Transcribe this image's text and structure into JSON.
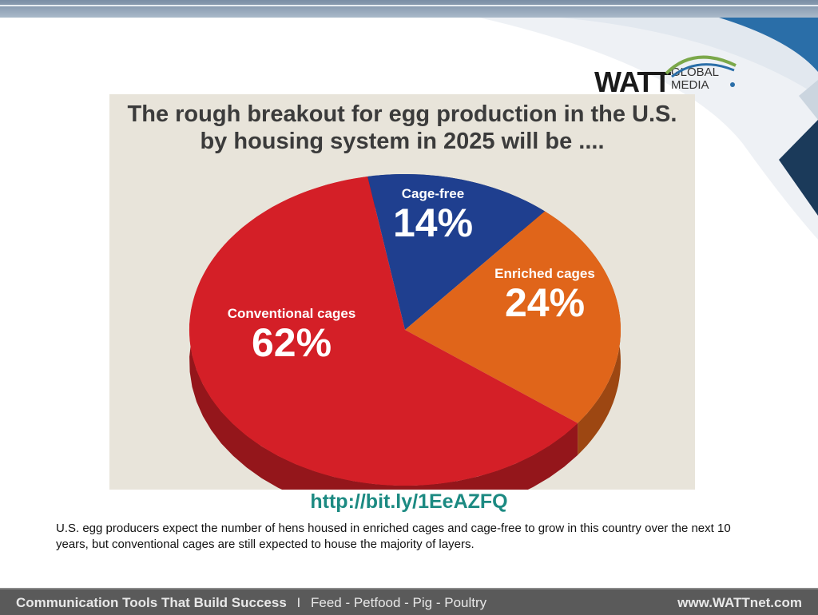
{
  "logo": {
    "brand": "WATT",
    "line1": "GLOBAL",
    "line2": "MEDIA"
  },
  "chart_data": {
    "type": "pie",
    "title_line1": "The rough breakout for egg production in the U.S.",
    "title_line2": "by housing system in 2025 will be ....",
    "slices": [
      {
        "label": "Cage-free",
        "value": 14,
        "value_label": "14%",
        "color": "#1f3f8f"
      },
      {
        "label": "Enriched cages",
        "value": 24,
        "value_label": "24%",
        "color": "#e0651a"
      },
      {
        "label": "Conventional cages",
        "value": 62,
        "value_label": "62%",
        "color": "#d41f27"
      }
    ]
  },
  "link": "http://bit.ly/1EeAZFQ",
  "caption": "U.S. egg producers expect the number of hens housed in enriched cages and cage-free to grow in this country over the next 10 years, but conventional cages are still expected to house the majority of layers.",
  "footer": {
    "tagline": "Communication Tools That Build Success",
    "separator": "I",
    "segments": "Feed - Petfood - Pig - Poultry",
    "website": "www.WATTnet.com"
  }
}
